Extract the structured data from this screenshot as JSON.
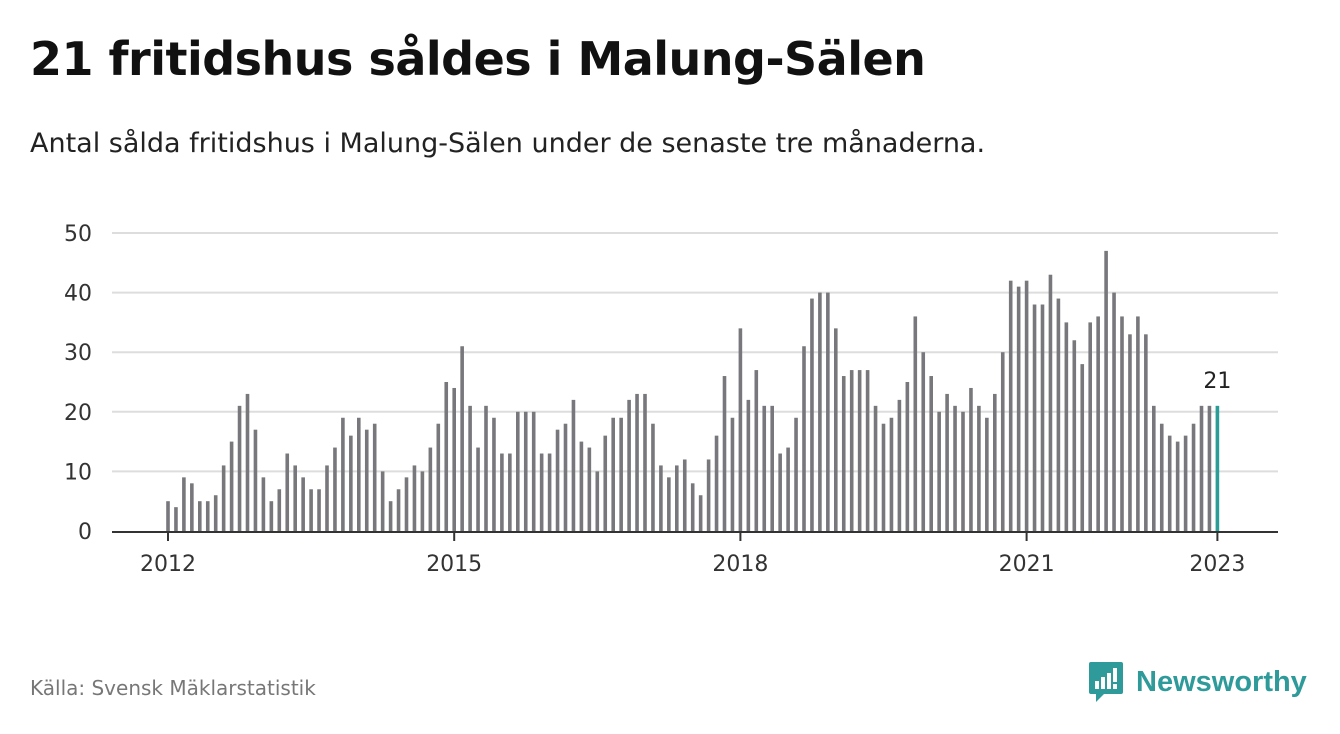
{
  "header": {
    "title": "21 fritidshus såldes i Malung-Sälen",
    "subtitle": "Antal sålda fritidshus i Malung-Sälen under de senaste tre månaderna."
  },
  "footer": {
    "source": "Källa: Svensk Mäklarstatistik",
    "brand_name": "Newsworthy",
    "brand_icon": "newsworthy-logo-icon"
  },
  "colors": {
    "bar": "#77777c",
    "highlight": "#2a9d96",
    "grid": "#dddddd",
    "axis": "#333333",
    "brand": "#2e9a9a"
  },
  "chart_data": {
    "type": "bar",
    "title": "21 fritidshus såldes i Malung-Sälen",
    "subtitle": "Antal sålda fritidshus i Malung-Sälen under de senaste tre månaderna.",
    "start_month": "2012-01",
    "frequency": "monthly",
    "values": [
      5,
      4,
      9,
      8,
      5,
      5,
      6,
      11,
      15,
      21,
      23,
      17,
      9,
      5,
      7,
      13,
      11,
      9,
      7,
      7,
      11,
      14,
      19,
      16,
      19,
      17,
      18,
      10,
      5,
      7,
      9,
      11,
      10,
      14,
      18,
      25,
      24,
      31,
      21,
      14,
      21,
      19,
      13,
      13,
      20,
      20,
      20,
      13,
      13,
      17,
      18,
      22,
      15,
      14,
      10,
      16,
      19,
      19,
      22,
      23,
      23,
      18,
      11,
      9,
      11,
      12,
      8,
      6,
      12,
      16,
      26,
      19,
      34,
      22,
      27,
      21,
      21,
      13,
      14,
      19,
      31,
      39,
      40,
      40,
      34,
      26,
      27,
      27,
      27,
      21,
      18,
      19,
      22,
      25,
      36,
      30,
      26,
      20,
      23,
      21,
      20,
      24,
      21,
      19,
      23,
      30,
      42,
      41,
      42,
      38,
      38,
      43,
      39,
      35,
      32,
      28,
      35,
      36,
      47,
      40,
      36,
      33,
      36,
      33,
      21,
      18,
      16,
      15,
      16,
      18,
      21,
      21,
      21
    ],
    "x_tick_labels": [
      "2012",
      "2015",
      "2018",
      "2021",
      "2023"
    ],
    "y_tick_labels": [
      "0",
      "10",
      "20",
      "30",
      "40",
      "50"
    ],
    "ylim": [
      0,
      50
    ],
    "grid": true,
    "highlight_last": true,
    "highlight_label": "21"
  }
}
